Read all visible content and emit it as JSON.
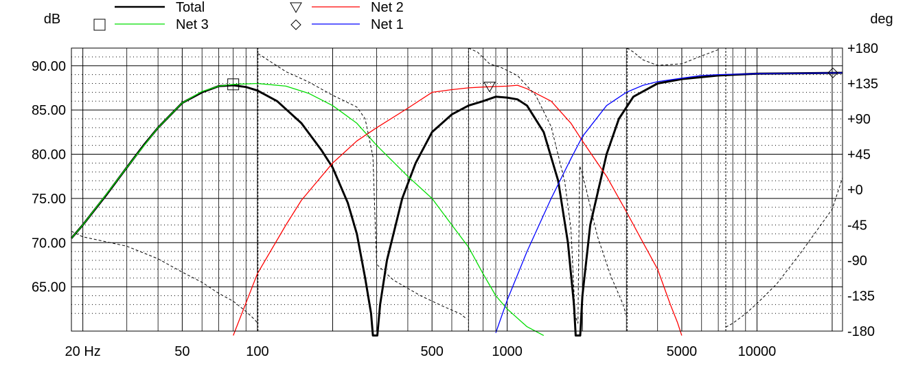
{
  "chart_data": {
    "type": "line",
    "x_scale": "log",
    "xlim": [
      18,
      22000
    ],
    "ylim_left": [
      60,
      92
    ],
    "ylim_right": [
      -180,
      180
    ],
    "ylabel_left": "dB",
    "ylabel_right": "deg",
    "left_ticks": [
      {
        "v": 90,
        "label": "90.00"
      },
      {
        "v": 85,
        "label": "85.00"
      },
      {
        "v": 80,
        "label": "80.00"
      },
      {
        "v": 75,
        "label": "75.00"
      },
      {
        "v": 70,
        "label": "70.00"
      },
      {
        "v": 65,
        "label": "65.00"
      }
    ],
    "right_ticks": [
      {
        "v": 180,
        "label": "+180"
      },
      {
        "v": 135,
        "label": "+135"
      },
      {
        "v": 90,
        "label": "+90"
      },
      {
        "v": 45,
        "label": "+45"
      },
      {
        "v": 0,
        "label": "+0"
      },
      {
        "v": -45,
        "label": "-45"
      },
      {
        "v": -90,
        "label": "-90"
      },
      {
        "v": -135,
        "label": "-135"
      },
      {
        "v": -180,
        "label": "-180"
      }
    ],
    "x_ticks": [
      {
        "v": 20,
        "label": "20 Hz"
      },
      {
        "v": 50,
        "label": "50"
      },
      {
        "v": 100,
        "label": "100"
      },
      {
        "v": 500,
        "label": "500"
      },
      {
        "v": 1000,
        "label": "1000"
      },
      {
        "v": 5000,
        "label": "5000"
      },
      {
        "v": 10000,
        "label": "10000"
      }
    ],
    "grid": true,
    "legend": [
      {
        "label": "Total",
        "color": "#000000",
        "marker": "none"
      },
      {
        "label": "Net 3",
        "color": "#00dd00",
        "marker": "square"
      },
      {
        "label": "Net 2",
        "color": "#ff0000",
        "marker": "triangle-down"
      },
      {
        "label": "Net 1",
        "color": "#0000ff",
        "marker": "diamond"
      }
    ],
    "series": [
      {
        "name": "Total",
        "color": "#000000",
        "axis": "left",
        "points": [
          [
            18,
            70.5
          ],
          [
            20,
            72.0
          ],
          [
            25,
            75.5
          ],
          [
            30,
            78.5
          ],
          [
            35,
            81.0
          ],
          [
            40,
            83.0
          ],
          [
            50,
            85.8
          ],
          [
            60,
            87.0
          ],
          [
            70,
            87.7
          ],
          [
            80,
            87.8
          ],
          [
            90,
            87.6
          ],
          [
            100,
            87.2
          ],
          [
            120,
            86.0
          ],
          [
            150,
            83.5
          ],
          [
            180,
            80.5
          ],
          [
            200,
            78.5
          ],
          [
            230,
            74.5
          ],
          [
            250,
            71.0
          ],
          [
            270,
            66.0
          ],
          [
            285,
            62.0
          ],
          [
            290,
            59.5
          ],
          [
            302,
            59.5
          ],
          [
            310,
            63.0
          ],
          [
            330,
            68.0
          ],
          [
            380,
            75.0
          ],
          [
            430,
            79.0
          ],
          [
            500,
            82.5
          ],
          [
            600,
            84.5
          ],
          [
            700,
            85.5
          ],
          [
            800,
            86.0
          ],
          [
            900,
            86.5
          ],
          [
            1000,
            86.4
          ],
          [
            1100,
            86.2
          ],
          [
            1200,
            85.5
          ],
          [
            1400,
            82.5
          ],
          [
            1600,
            77.0
          ],
          [
            1750,
            70.0
          ],
          [
            1850,
            63.0
          ],
          [
            1880,
            59.5
          ],
          [
            1960,
            59.5
          ],
          [
            2000,
            64.0
          ],
          [
            2150,
            72.0
          ],
          [
            2500,
            80.0
          ],
          [
            2800,
            84.0
          ],
          [
            3200,
            86.5
          ],
          [
            4000,
            88.0
          ],
          [
            5000,
            88.5
          ],
          [
            7000,
            88.9
          ],
          [
            10000,
            89.1
          ],
          [
            22000,
            89.2
          ]
        ]
      },
      {
        "name": "Net 3",
        "color": "#00dd00",
        "axis": "left",
        "points": [
          [
            18,
            70.5
          ],
          [
            20,
            72.0
          ],
          [
            30,
            78.5
          ],
          [
            40,
            83.0
          ],
          [
            50,
            85.8
          ],
          [
            60,
            87.1
          ],
          [
            70,
            87.7
          ],
          [
            80,
            87.9
          ],
          [
            100,
            88.0
          ],
          [
            130,
            87.7
          ],
          [
            160,
            86.9
          ],
          [
            200,
            85.5
          ],
          [
            250,
            83.5
          ],
          [
            300,
            81.0
          ],
          [
            400,
            77.5
          ],
          [
            500,
            75.0
          ],
          [
            600,
            72.0
          ],
          [
            700,
            69.5
          ],
          [
            800,
            66.5
          ],
          [
            900,
            64.0
          ],
          [
            1000,
            62.5
          ],
          [
            1200,
            60.5
          ],
          [
            1400,
            59.5
          ]
        ]
      },
      {
        "name": "Net 2",
        "color": "#ff0000",
        "axis": "left",
        "points": [
          [
            80,
            59.5
          ],
          [
            100,
            66.5
          ],
          [
            130,
            72.0
          ],
          [
            150,
            74.8
          ],
          [
            200,
            79.0
          ],
          [
            250,
            81.5
          ],
          [
            300,
            83.0
          ],
          [
            400,
            85.2
          ],
          [
            500,
            87.0
          ],
          [
            600,
            87.3
          ],
          [
            700,
            87.5
          ],
          [
            800,
            87.6
          ],
          [
            1000,
            87.7
          ],
          [
            1100,
            87.8
          ],
          [
            1200,
            87.4
          ],
          [
            1500,
            86.0
          ],
          [
            1800,
            83.5
          ],
          [
            2000,
            81.5
          ],
          [
            2500,
            77.5
          ],
          [
            3000,
            73.5
          ],
          [
            3500,
            70.0
          ],
          [
            4000,
            67.0
          ],
          [
            4500,
            63.0
          ],
          [
            4800,
            61.0
          ],
          [
            5000,
            59.5
          ]
        ]
      },
      {
        "name": "Net 1",
        "color": "#0000ff",
        "axis": "left",
        "points": [
          [
            900,
            59.8
          ],
          [
            1000,
            63.5
          ],
          [
            1200,
            69.0
          ],
          [
            1500,
            75.0
          ],
          [
            1800,
            79.5
          ],
          [
            2000,
            82.0
          ],
          [
            2500,
            85.5
          ],
          [
            3000,
            87.0
          ],
          [
            3500,
            87.8
          ],
          [
            4000,
            88.2
          ],
          [
            5000,
            88.6
          ],
          [
            6000,
            88.9
          ],
          [
            7000,
            89.0
          ],
          [
            10000,
            89.1
          ],
          [
            22000,
            89.2
          ]
        ]
      },
      {
        "name": "",
        "color": "#000000",
        "axis": "right",
        "dashed": true,
        "points": [
          [
            18,
            -53
          ],
          [
            20,
            -60
          ],
          [
            30,
            -72
          ],
          [
            40,
            -88
          ],
          [
            50,
            -105
          ],
          [
            60,
            -118
          ],
          [
            70,
            -132
          ],
          [
            80,
            -142
          ],
          [
            90,
            -155
          ],
          [
            98,
            -166
          ],
          [
            100,
            -170
          ],
          [
            100.5,
            173
          ],
          [
            110,
            165
          ],
          [
            130,
            150
          ],
          [
            160,
            137
          ],
          [
            200,
            120
          ],
          [
            250,
            105
          ],
          [
            270,
            90
          ],
          [
            290,
            42
          ],
          [
            300,
            -95
          ],
          [
            350,
            -115
          ],
          [
            450,
            -135
          ],
          [
            550,
            -148
          ],
          [
            650,
            -158
          ],
          [
            690,
            -165
          ],
          [
            700,
            180
          ],
          [
            760,
            175
          ],
          [
            850,
            160
          ],
          [
            950,
            155
          ],
          [
            1100,
            145
          ],
          [
            1300,
            120
          ],
          [
            1500,
            80
          ],
          [
            1700,
            10
          ],
          [
            1800,
            -50
          ],
          [
            1870,
            -160
          ],
          [
            1920,
            -170
          ],
          [
            1950,
            30
          ],
          [
            2000,
            20
          ],
          [
            2300,
            -60
          ],
          [
            2600,
            -110
          ],
          [
            2900,
            -145
          ],
          [
            3000,
            -160
          ],
          [
            3020,
            180
          ],
          [
            3200,
            175
          ],
          [
            3500,
            165
          ],
          [
            4000,
            158
          ],
          [
            5000,
            160
          ],
          [
            6000,
            170
          ],
          [
            7000,
            178
          ],
          [
            7500,
            -175
          ],
          [
            8000,
            -170
          ],
          [
            9000,
            -158
          ],
          [
            10000,
            -145
          ],
          [
            12000,
            -120
          ],
          [
            15000,
            -80
          ],
          [
            20000,
            -25
          ],
          [
            22000,
            15
          ]
        ]
      }
    ],
    "markers": [
      {
        "series": "Net 3",
        "shape": "square",
        "x": 80,
        "y": 87.9
      },
      {
        "series": "Net 2",
        "shape": "triangle-down",
        "x": 850,
        "y": 87.6
      },
      {
        "series": "Net 1",
        "shape": "diamond",
        "x": 22000,
        "y": 89.2
      }
    ]
  }
}
